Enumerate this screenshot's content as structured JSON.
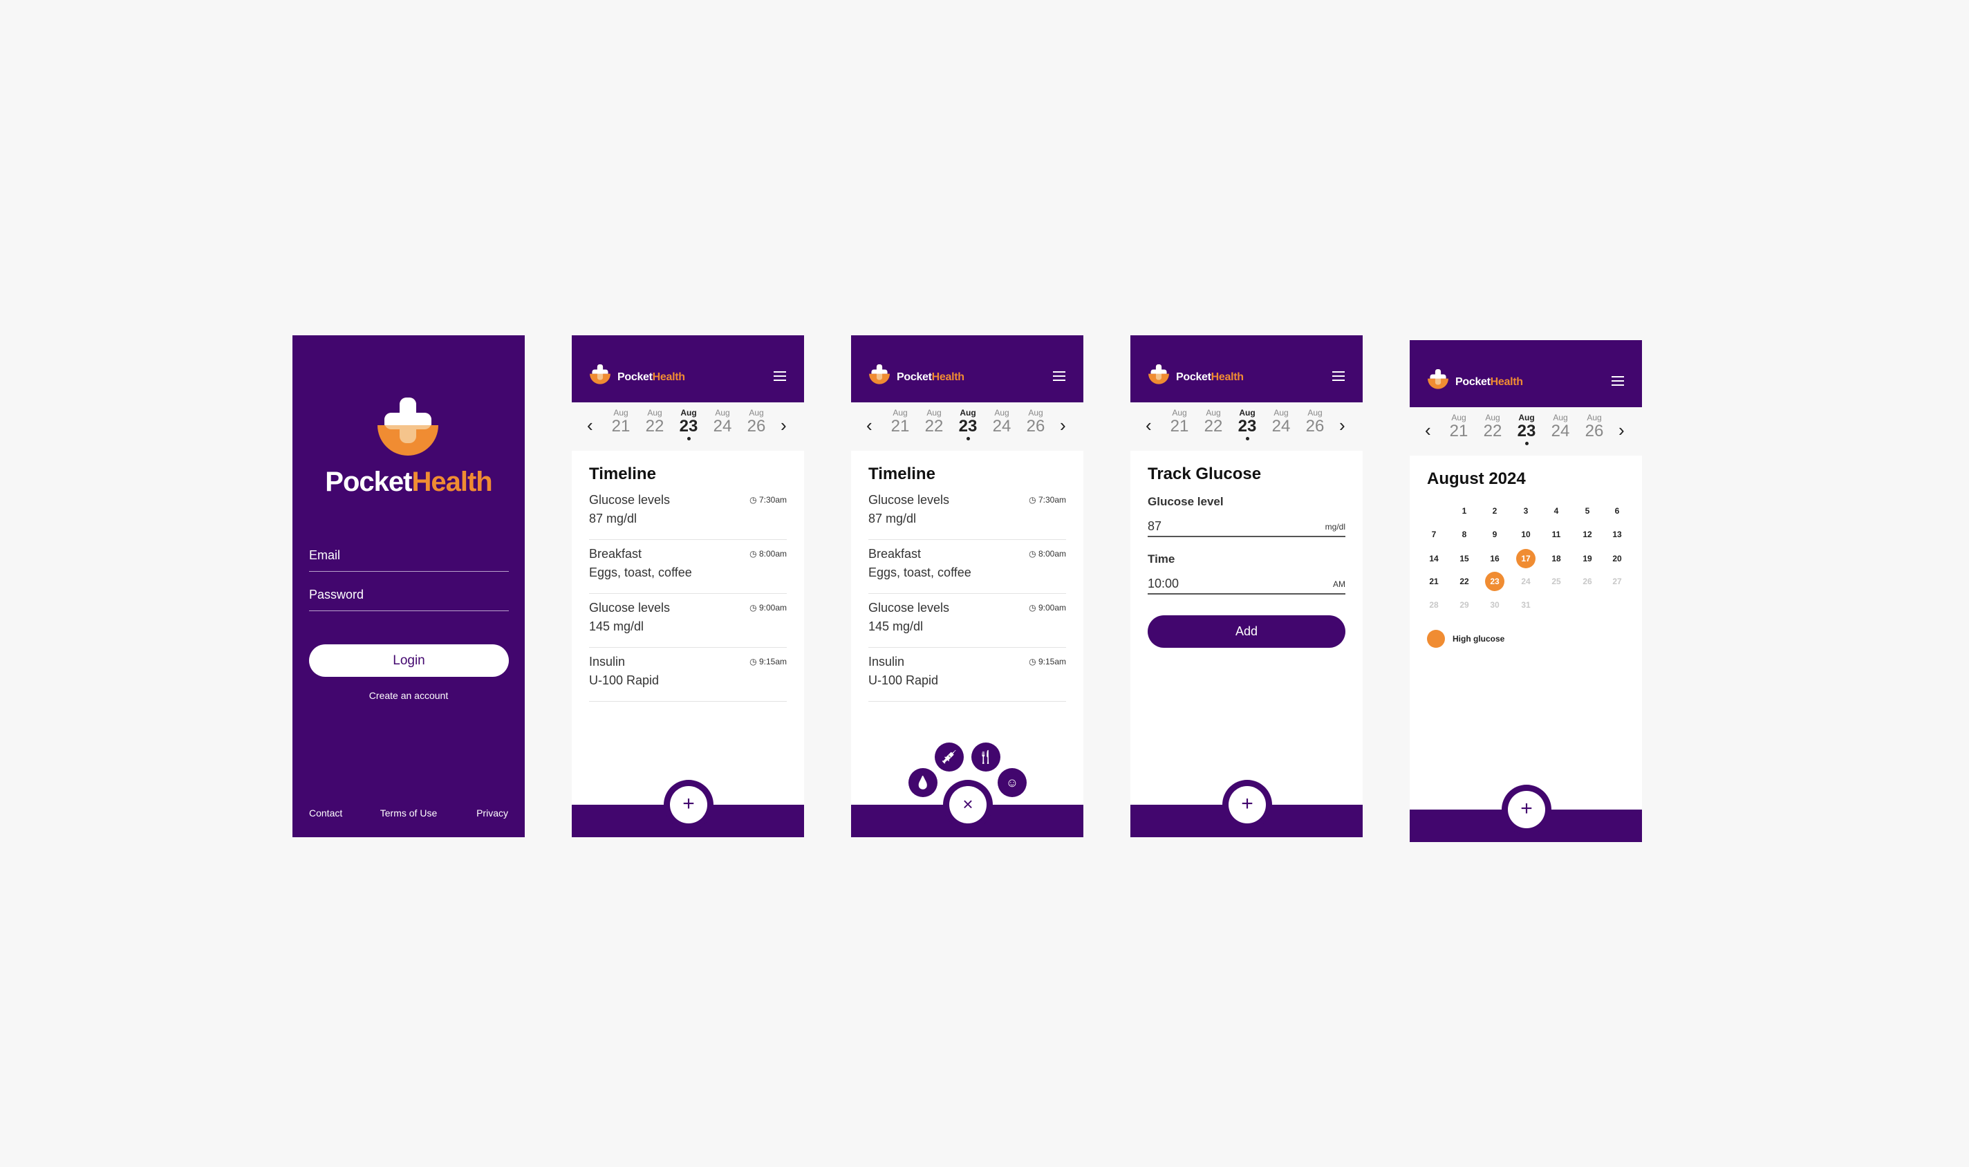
{
  "brand": {
    "part1": "Pocket",
    "part2": "Health"
  },
  "colors": {
    "primary": "#42066e",
    "accent": "#f08c32",
    "background": "#f7f7f7"
  },
  "login": {
    "email_placeholder": "Email",
    "password_placeholder": "Password",
    "login_label": "Login",
    "create_account": "Create an account",
    "footer_links": [
      "Contact",
      "Terms of Use",
      "Privacy"
    ]
  },
  "date_strip": {
    "days": [
      {
        "month": "Aug",
        "day": "21"
      },
      {
        "month": "Aug",
        "day": "22"
      },
      {
        "month": "Aug",
        "day": "23",
        "selected": true
      },
      {
        "month": "Aug",
        "day": "24"
      },
      {
        "month": "Aug",
        "day": "26"
      }
    ],
    "prev_icon": "chevron-left-icon",
    "next_icon": "chevron-right-icon"
  },
  "timeline": {
    "title": "Timeline",
    "items": [
      {
        "title": "Glucose levels",
        "detail": "87 mg/dl",
        "time": "7:30am"
      },
      {
        "title": "Breakfast",
        "detail": "Eggs, toast, coffee",
        "time": "8:00am"
      },
      {
        "title": "Glucose levels",
        "detail": "145 mg/dl",
        "time": "9:00am"
      },
      {
        "title": "Insulin",
        "detail": "U-100 Rapid",
        "time": "9:15am"
      }
    ]
  },
  "fab": {
    "add_label": "+",
    "close_label": "×"
  },
  "fab_menu": [
    {
      "icon": "drop-icon",
      "glyph": "💧"
    },
    {
      "icon": "syringe-icon",
      "glyph": "💉"
    },
    {
      "icon": "utensils-icon",
      "glyph": "🍴"
    },
    {
      "icon": "mood-icon",
      "glyph": "☺"
    }
  ],
  "track": {
    "title": "Track Glucose",
    "glucose_label": "Glucose level",
    "glucose_value": "87",
    "glucose_unit": "mg/dl",
    "time_label": "Time",
    "time_value": "10:00",
    "time_unit": "AM",
    "add_label": "Add"
  },
  "calendar": {
    "title": "August 2024",
    "first_weekday_index": 1,
    "days_in_month": 31,
    "today": 23,
    "future_dimmed_after": 23,
    "high_glucose_days": [
      17,
      23
    ],
    "legend": "High glucose"
  }
}
